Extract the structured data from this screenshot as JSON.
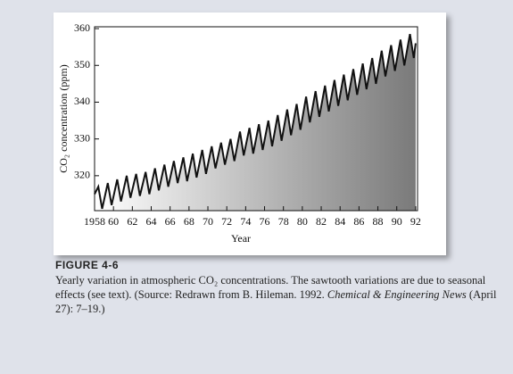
{
  "chart_data": {
    "type": "line",
    "y_label": "CO₂ concentration (ppm)",
    "x_label": "Year",
    "figure_label": "FIGURE 4-6",
    "caption": [
      "Yearly variation in atmospheric CO₂ concentrations. The sawtooth variations are due to seasonal effects (see text). (Source: Redrawn from B. Hileman. 1992. ",
      "Chemical & Engineering News",
      " (April 27): 7–19.)"
    ],
    "x": [
      1958.0,
      1958.4,
      1958.8,
      1959.4,
      1959.8,
      1960.4,
      1960.8,
      1961.4,
      1961.8,
      1962.4,
      1962.8,
      1963.4,
      1963.8,
      1964.4,
      1964.8,
      1965.4,
      1965.8,
      1966.4,
      1966.8,
      1967.4,
      1967.8,
      1968.4,
      1968.8,
      1969.4,
      1969.8,
      1970.4,
      1970.8,
      1971.4,
      1971.8,
      1972.4,
      1972.8,
      1973.4,
      1973.8,
      1974.4,
      1974.8,
      1975.4,
      1975.8,
      1976.4,
      1976.8,
      1977.4,
      1977.8,
      1978.4,
      1978.8,
      1979.4,
      1979.8,
      1980.4,
      1980.8,
      1981.4,
      1981.8,
      1982.4,
      1982.8,
      1983.4,
      1983.8,
      1984.4,
      1984.8,
      1985.4,
      1985.8,
      1986.4,
      1986.8,
      1987.4,
      1987.8,
      1988.4,
      1988.8,
      1989.4,
      1989.8,
      1990.4,
      1990.8,
      1991.4,
      1991.8,
      1992.0
    ],
    "series": [
      {
        "color": "#111111",
        "values": [
          315,
          317,
          311,
          318,
          312,
          319,
          313,
          320,
          314,
          320.5,
          314.5,
          321,
          315,
          322,
          316,
          323,
          317,
          324,
          318,
          325,
          318.5,
          326,
          319.5,
          327,
          320.5,
          328,
          322,
          329,
          323,
          330,
          324,
          332,
          325.5,
          333,
          326,
          334,
          327,
          335,
          328,
          336.5,
          329.5,
          338,
          331,
          339.5,
          332.5,
          341.5,
          334.5,
          343,
          336,
          344.5,
          337.5,
          346,
          339,
          347.5,
          340.5,
          349,
          342,
          350.5,
          343.5,
          352,
          345,
          354,
          347,
          355.5,
          348.5,
          357,
          350,
          358.5,
          352,
          356
        ]
      }
    ],
    "xlim": [
      1958,
      1992.2
    ],
    "xticks": [
      {
        "value": 1958,
        "label": "1958"
      },
      {
        "value": 1960,
        "label": "60"
      },
      {
        "value": 1962,
        "label": "62"
      },
      {
        "value": 1964,
        "label": "64"
      },
      {
        "value": 1966,
        "label": "66"
      },
      {
        "value": 1968,
        "label": "68"
      },
      {
        "value": 1970,
        "label": "70"
      },
      {
        "value": 1972,
        "label": "72"
      },
      {
        "value": 1974,
        "label": "74"
      },
      {
        "value": 1976,
        "label": "76"
      },
      {
        "value": 1978,
        "label": "78"
      },
      {
        "value": 1980,
        "label": "80"
      },
      {
        "value": 1982,
        "label": "82"
      },
      {
        "value": 1984,
        "label": "84"
      },
      {
        "value": 1986,
        "label": "86"
      },
      {
        "value": 1988,
        "label": "88"
      },
      {
        "value": 1990,
        "label": "90"
      },
      {
        "value": 1992,
        "label": "92"
      }
    ],
    "ylim": [
      310.5,
      360.5
    ],
    "yticks": [
      320,
      330,
      340,
      350,
      360
    ],
    "grid": false
  }
}
